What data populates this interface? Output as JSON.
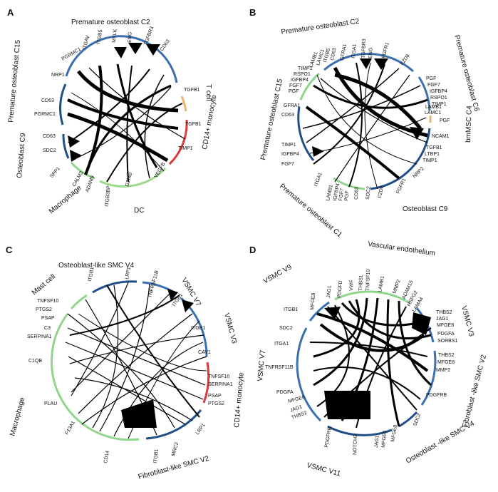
{
  "figure": {
    "panels": [
      {
        "label": "A",
        "cells": [
          {
            "name": "Premature osteoblast C2",
            "color": "#3a6fb0",
            "genes": [
              "PGRMC1",
              "ITGAV",
              "ITGB5",
              "MYLK",
              "ENG",
              "TGFBR3",
              "CD63"
            ]
          },
          {
            "name": "T cell",
            "color": "#f0b56b",
            "genes": [
              "TGFB1"
            ]
          },
          {
            "name": "CD14+ monocyte",
            "color": "#d93a3a",
            "genes": [
              "TGFB1",
              "TIMP1"
            ]
          },
          {
            "name": "DC",
            "color": "#9bd88a",
            "genes": [
              "VEGFB",
              "GZMB",
              "ITGB3BP"
            ]
          },
          {
            "name": "Macrophage",
            "color": "#8fd58a",
            "genes": [
              "ADAM9",
              "CALM3",
              "SPP1"
            ]
          },
          {
            "name": "Osteoblast C9",
            "color": "#1f4e88",
            "genes": [
              "SDC2",
              "CD63"
            ]
          },
          {
            "name": "Premature osteoblast C15",
            "color": "#1f4e88",
            "genes": [
              "PGRMC1",
              "CD63",
              "NRP1"
            ]
          }
        ]
      },
      {
        "label": "B",
        "cells": [
          {
            "name": "Premature osteoblast C2",
            "color": "#3a6fb0",
            "genes": [
              "LAMB1",
              "LAMC1",
              "ITGB5",
              "CD63",
              "GFRA1",
              "ITGA1",
              "TGFBR3",
              "ENG",
              "FGFR1",
              "FZD8"
            ]
          },
          {
            "name": "Premature osteoblast C6",
            "color": "#3a6fb0",
            "genes": [
              "PGF",
              "FGF7",
              "IGFBP4",
              "RSPO1",
              "TIMP1",
              "LAMB1",
              "LAMC1"
            ]
          },
          {
            "name": "bmMSC C4",
            "color": "#f0b56b",
            "genes": [
              "PGF"
            ]
          },
          {
            "name": "Osteoblast C9",
            "color": "#1f4e88",
            "genes": [
              "NCAM1",
              "TGFB1",
              "LTBP1",
              "TIMP1",
              "NRP2",
              "FGFR1",
              "FZD8",
              "SDC2",
              "CD63"
            ]
          },
          {
            "name": "Premature osteoblast C1",
            "color": "#8fd58a",
            "genes": [
              "PGF",
              "FGF7",
              "IGFBP4",
              "LAMB1",
              "ITGA1"
            ]
          },
          {
            "name": "Premature osteoblast C15",
            "color": "#1f4e88",
            "genes": [
              "FGF7",
              "IGFBP4",
              "TIMP1",
              "CD63",
              "GFRA1"
            ]
          },
          {
            "name": "",
            "color": "#8fd58a",
            "genes": [
              "PGF",
              "FGF7",
              "IGFBP4",
              "RSPO1",
              "TIMP1"
            ]
          }
        ]
      },
      {
        "label": "C",
        "cells": [
          {
            "name": "Osteoblast-like SMC V4",
            "color": "#1f4e88",
            "genes": [
              "ITGB1",
              "LRP1"
            ]
          },
          {
            "name": "VSMC V7",
            "color": "#3a6fb0",
            "genes": [
              "TNFRSF11B",
              "ITGB1"
            ]
          },
          {
            "name": "VSMC V3",
            "color": "#3a6fb0",
            "genes": [
              "ITGB1",
              "CAV1"
            ]
          },
          {
            "name": "CD14+ monocyte",
            "color": "#d93a3a",
            "genes": [
              "TNFSF10",
              "SERPINA1",
              "PSAP",
              "PTGS2"
            ]
          },
          {
            "name": "Fibroblast-like SMC V2",
            "color": "#1f4e88",
            "genes": [
              "LRP1",
              "MRC2",
              "ITGB1"
            ]
          },
          {
            "name": "Macrophage",
            "color": "#8fd58a",
            "genes": [
              "CD14",
              "F13A1",
              "PLAU",
              "C1QB",
              "SERPINA1",
              "C3",
              "PSAP",
              "PTGS2",
              "TNFSF10"
            ]
          },
          {
            "name": "Mast cell",
            "color": "#8fd58a",
            "genes": []
          }
        ]
      },
      {
        "label": "D",
        "cells": [
          {
            "name": "Vascular endothelium",
            "color": "#8fd58a",
            "genes": [
              "MFGE8",
              "JAG1",
              "PDGFD",
              "VWF",
              "THBS1",
              "TNFSF10",
              "LAMB1",
              "MMP2",
              "ADAM15",
              "HSPG2",
              "LAMA4"
            ]
          },
          {
            "name": "VSMC V3",
            "color": "#3a6fb0",
            "genes": [
              "THBS2",
              "JAG1",
              "MFGE8",
              "PDGFA",
              "SORBS1"
            ]
          },
          {
            "name": "Fibroblast -like SMC V2",
            "color": "#3a6fb0",
            "genes": [
              "THBS2",
              "MFGE8",
              "MMP2",
              "PDGFRB"
            ]
          },
          {
            "name": "Osteoblast -like SMC V4",
            "color": "#1f4e88",
            "genes": [
              "SDC2",
              "MFGE8"
            ]
          },
          {
            "name": "VSMC V11",
            "color": "#1f4e88",
            "genes": [
              "JAG1",
              "MFGE8",
              "NOTCH3",
              "PDGFRB"
            ]
          },
          {
            "name": "VSMC V7",
            "color": "#3a6fb0",
            "genes": [
              "THBS2",
              "JAG1",
              "MFGE8",
              "PDGFA",
              "TNFRSF11B",
              "ITGA1",
              "SDC2",
              "ITGB1"
            ]
          },
          {
            "name": "VSMC V9",
            "color": "#3a6fb0",
            "genes": []
          }
        ]
      }
    ]
  }
}
